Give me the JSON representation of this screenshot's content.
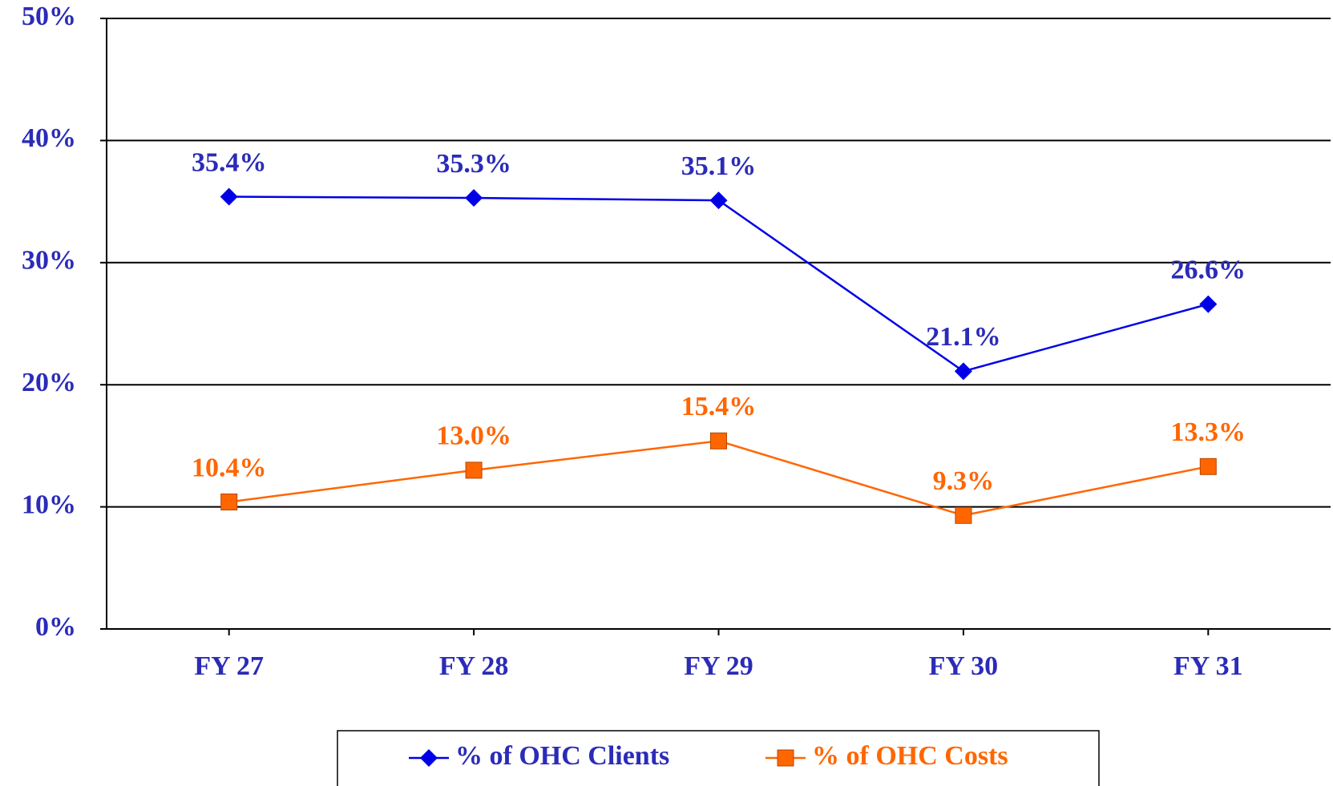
{
  "chart_data": {
    "type": "line",
    "categories": [
      "FY 27",
      "FY 28",
      "FY 29",
      "FY 30",
      "FY 31"
    ],
    "series": [
      {
        "name": "% of OHC Clients",
        "color": "#0000e6",
        "label_color": "#2b2bb8",
        "marker": "diamond",
        "values": [
          35.4,
          35.3,
          35.1,
          21.1,
          26.6
        ],
        "value_labels": [
          "35.4%",
          "35.3%",
          "35.1%",
          "21.1%",
          "26.6%"
        ]
      },
      {
        "name": "% of OHC Costs",
        "color": "#ff6600",
        "label_color": "#ff6600",
        "marker": "square",
        "values": [
          10.4,
          13.0,
          15.4,
          9.3,
          13.3
        ],
        "value_labels": [
          "10.4%",
          "13.0%",
          "15.4%",
          "9.3%",
          "13.3%"
        ]
      }
    ],
    "ylim": [
      0,
      50
    ],
    "yticks": [
      {
        "value": 0,
        "label": "0%"
      },
      {
        "value": 10,
        "label": "10%"
      },
      {
        "value": 20,
        "label": "20%"
      },
      {
        "value": 30,
        "label": "30%"
      },
      {
        "value": 40,
        "label": "40%"
      },
      {
        "value": 50,
        "label": "50%"
      }
    ],
    "grid": true,
    "legend": "bottom",
    "axis_label_color": "#2b2bb8"
  }
}
